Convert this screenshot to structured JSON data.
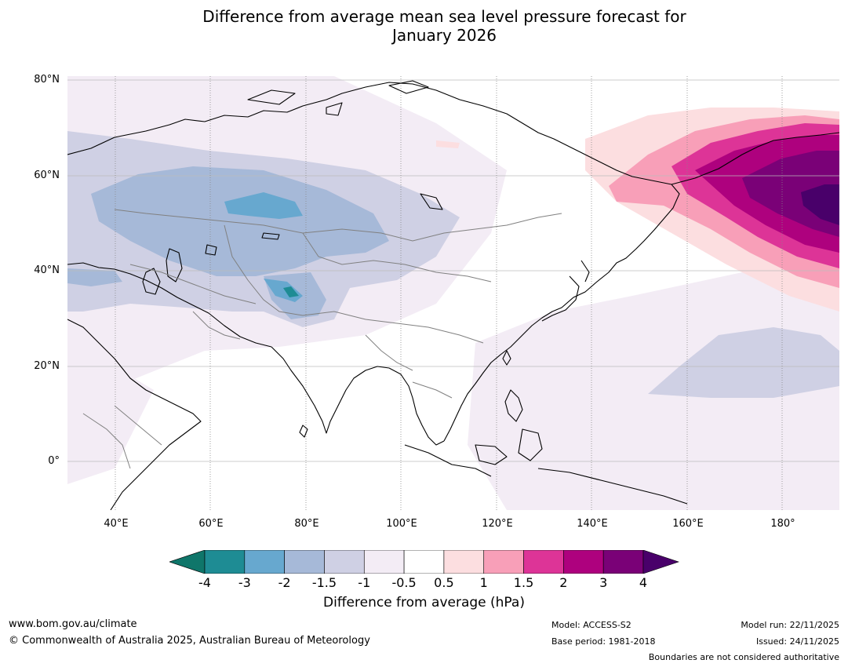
{
  "title": {
    "line1": "Difference from average mean sea level pressure forecast for",
    "line2": "January 2026"
  },
  "map": {
    "lat_labels": [
      "80°N",
      "60°N",
      "40°N",
      "20°N",
      "0°"
    ],
    "lon_labels": [
      "40°E",
      "60°E",
      "80°E",
      "100°E",
      "120°E",
      "140°E",
      "160°E",
      "180°"
    ]
  },
  "colorbar": {
    "ticks": [
      "-4",
      "-3",
      "-2",
      "-1.5",
      "-1",
      "-0.5",
      "0.5",
      "1",
      "1.5",
      "2",
      "3",
      "4"
    ],
    "label": "Difference from average (hPa)",
    "colors": {
      "below": "#0f766a",
      "bins": [
        "#1e8c94",
        "#67a8cf",
        "#a6b9d8",
        "#cfd0e4",
        "#f3ecf5",
        "#ffffff",
        "#fcdee0",
        "#f89fb8",
        "#dd3497",
        "#ae017e",
        "#7a0177"
      ],
      "above": "#49006a"
    }
  },
  "footer": {
    "url": "www.bom.gov.au/climate",
    "copyright": "© Commonwealth of Australia 2025, Australian Bureau of Meteorology",
    "model": "Model: ACCESS-S2",
    "base_period": "Base period: 1981-2018",
    "model_run": "Model run: 22/11/2025",
    "issued": "Issued: 24/11/2025",
    "disclaimer": "Boundaries are not considered authoritative"
  }
}
